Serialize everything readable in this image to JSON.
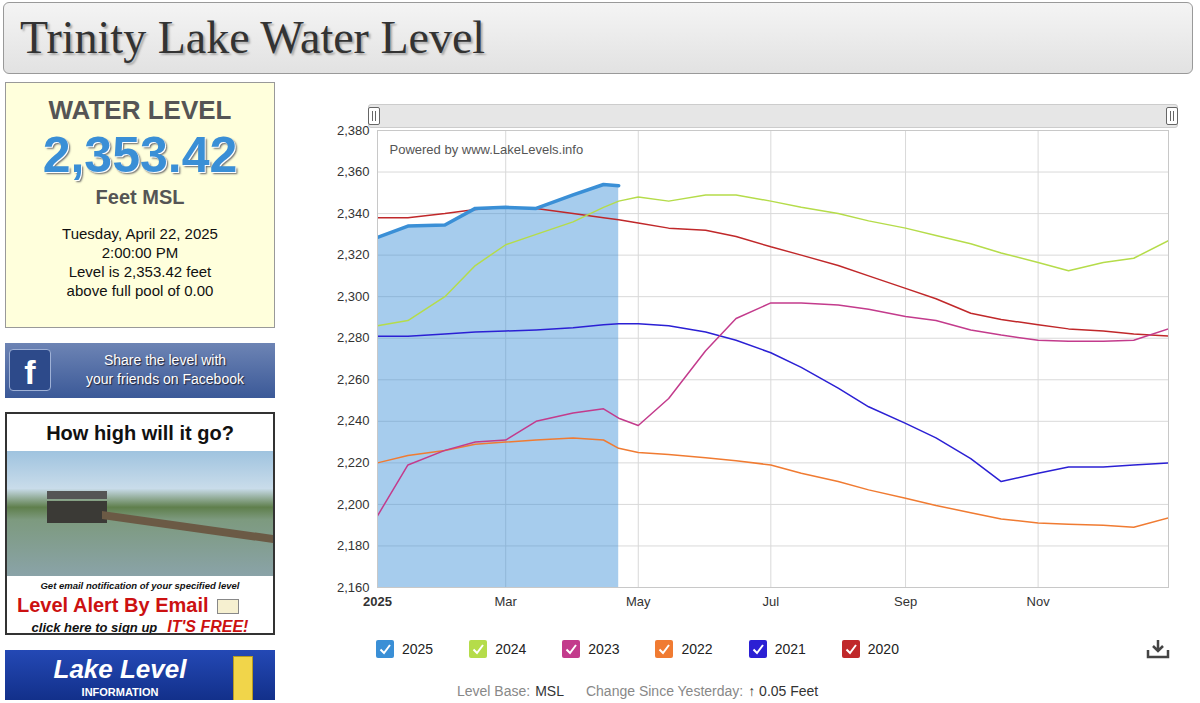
{
  "header": {
    "title": "Trinity Lake Water Level"
  },
  "level_box": {
    "heading": "WATER LEVEL",
    "level": "2,353.42",
    "unit": "Feet MSL",
    "date": "Tuesday, April 22, 2025",
    "time": "2:00:00 PM",
    "lines": [
      "Level is 2,353.42 feet",
      "above full pool of 0.00"
    ]
  },
  "facebook": {
    "icon": "f",
    "lines": [
      "Share the level with",
      "your friends on Facebook"
    ]
  },
  "ad": {
    "title": "How high will it go?",
    "note": "Get email notification of your specified level",
    "headline": "Level Alert By Email",
    "action": "click here to sign up",
    "tag": "IT'S FREE!"
  },
  "lake_level_box": {
    "lines": [
      "Lake Level",
      "INFORMATION"
    ]
  },
  "chart_data": {
    "type": "line",
    "annotations": [
      "Powered by www.LakeLevels.info"
    ],
    "x": [
      "2025-01-01",
      "2025-01-15",
      "2025-02-01",
      "2025-02-15",
      "2025-03-01",
      "2025-03-15",
      "2025-04-01",
      "2025-04-15",
      "2025-04-22",
      "2025-05-01",
      "2025-05-15",
      "2025-06-01",
      "2025-06-15",
      "2025-07-01",
      "2025-07-15",
      "2025-08-01",
      "2025-08-15",
      "2025-09-01",
      "2025-09-15",
      "2025-10-01",
      "2025-10-15",
      "2025-11-01",
      "2025-11-15",
      "2025-12-01",
      "2025-12-15",
      "2025-12-31"
    ],
    "xlim": [
      "2025-01-01",
      "2025-12-31"
    ],
    "xticks": [
      {
        "value": "2025-01-01",
        "label": "2025"
      },
      {
        "value": "2025-03-01",
        "label": "Mar"
      },
      {
        "value": "2025-05-01",
        "label": "May"
      },
      {
        "value": "2025-07-01",
        "label": "Jul"
      },
      {
        "value": "2025-09-01",
        "label": "Sep"
      },
      {
        "value": "2025-11-01",
        "label": "Nov"
      }
    ],
    "ylim": [
      2160,
      2380
    ],
    "yticks": [
      {
        "value": 2160,
        "label": "2,160"
      },
      {
        "value": 2180,
        "label": "2,180"
      },
      {
        "value": 2200,
        "label": "2,200"
      },
      {
        "value": 2220,
        "label": "2,220"
      },
      {
        "value": 2240,
        "label": "2,240"
      },
      {
        "value": 2260,
        "label": "2,260"
      },
      {
        "value": 2280,
        "label": "2,280"
      },
      {
        "value": 2300,
        "label": "2,300"
      },
      {
        "value": 2320,
        "label": "2,320"
      },
      {
        "value": 2340,
        "label": "2,340"
      },
      {
        "value": 2360,
        "label": "2,360"
      },
      {
        "value": 2380,
        "label": "2,380"
      }
    ],
    "grid": true,
    "legend": "bottom",
    "series": [
      {
        "name": "2025",
        "color": "#3a8fd6",
        "type": "area",
        "values": [
          2328.5,
          2334,
          2334.5,
          2342.5,
          2343,
          2342.5,
          2349,
          2354,
          2353.42,
          null,
          null,
          null,
          null,
          null,
          null,
          null,
          null,
          null,
          null,
          null,
          null,
          null,
          null,
          null,
          null,
          null
        ]
      },
      {
        "name": "2024",
        "color": "#b5dc4a",
        "values": [
          2286,
          2288.5,
          2300,
          2315,
          2325,
          2330,
          2336,
          2343,
          2346,
          2348,
          2346,
          2349,
          2349,
          2346,
          2343,
          2340,
          2336.5,
          2333,
          2329.5,
          2325.5,
          2321,
          2316.5,
          2312.5,
          2316.5,
          2318.5,
          2327
        ]
      },
      {
        "name": "2023",
        "color": "#c33b8c",
        "values": [
          2194.5,
          2219,
          2226,
          2230,
          2231,
          2240,
          2244,
          2246,
          2241.5,
          2238,
          2251,
          2274,
          2289.5,
          2297,
          2297,
          2296,
          2294,
          2290.5,
          2288.5,
          2284,
          2281.5,
          2279,
          2278.5,
          2278.5,
          2279,
          2284.5
        ]
      },
      {
        "name": "2022",
        "color": "#f07b32",
        "values": [
          2220,
          2223.5,
          2226,
          2229,
          2230,
          2231,
          2232,
          2231,
          2227,
          2225,
          2224,
          2222.5,
          2221,
          2219,
          2215,
          2211,
          2207,
          2203,
          2199.5,
          2196,
          2193,
          2191,
          2190.5,
          2190,
          2189,
          2193.5
        ]
      },
      {
        "name": "2021",
        "color": "#2b20d4",
        "values": [
          2281,
          2281,
          2282,
          2283,
          2283.5,
          2284,
          2285,
          2286.5,
          2287,
          2287,
          2286,
          2283,
          2279,
          2273,
          2266,
          2256,
          2247,
          2239,
          2232,
          2222,
          2211,
          2215,
          2218,
          2218,
          2219,
          2220
        ]
      },
      {
        "name": "2020",
        "color": "#c0282a",
        "values": [
          2338,
          2338,
          2340,
          2342,
          2343,
          2342.5,
          2340,
          2338,
          2337,
          2335.5,
          2333,
          2332,
          2329,
          2324,
          2320,
          2315,
          2310,
          2304,
          2299,
          2292,
          2289,
          2286.5,
          2284.5,
          2283.5,
          2282,
          2281
        ]
      }
    ]
  },
  "footer": {
    "level_base_label": "Level Base:",
    "level_base": "MSL",
    "change_label": "Change Since Yesterday:",
    "change": "↑ 0.05 Feet"
  }
}
